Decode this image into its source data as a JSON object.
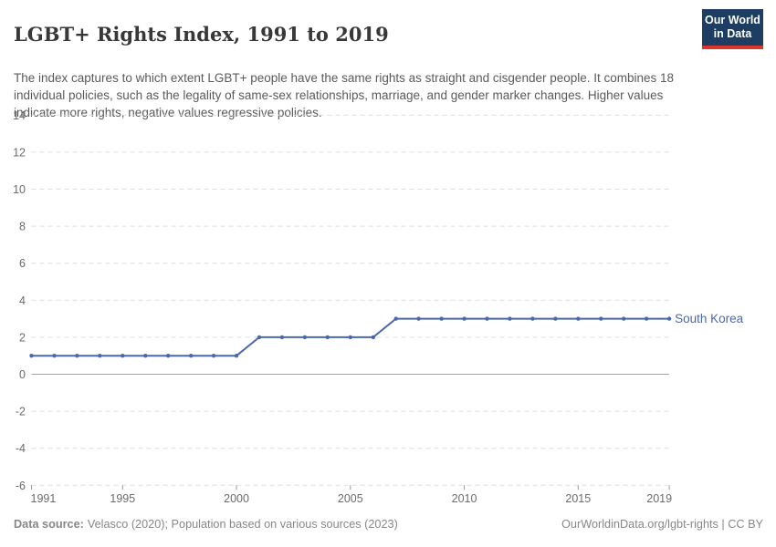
{
  "header": {
    "title": "LGBT+ Rights Index, 1991 to 2019",
    "subtitle": "The index captures to which extent LGBT+ people have the same rights as straight and cisgender people. It combines 18 individual policies, such as the legality of same-sex relationships, marriage, and gender marker changes. Higher values indicate more rights, negative values regressive policies.",
    "logo": {
      "line1": "Our World",
      "line2": "in Data",
      "bg_color": "#1d3d63",
      "accent_color": "#dc352b"
    }
  },
  "chart_data": {
    "type": "line",
    "title": "LGBT+ Rights Index, 1991 to 2019",
    "xlabel": "",
    "ylabel": "",
    "x": [
      1991,
      1992,
      1993,
      1994,
      1995,
      1996,
      1997,
      1998,
      1999,
      2000,
      2001,
      2002,
      2003,
      2004,
      2005,
      2006,
      2007,
      2008,
      2009,
      2010,
      2011,
      2012,
      2013,
      2014,
      2015,
      2016,
      2017,
      2018,
      2019
    ],
    "series": [
      {
        "name": "South Korea",
        "values": [
          1,
          1,
          1,
          1,
          1,
          1,
          1,
          1,
          1,
          1,
          2,
          2,
          2,
          2,
          2,
          2,
          3,
          3,
          3,
          3,
          3,
          3,
          3,
          3,
          3,
          3,
          3,
          3,
          3
        ]
      }
    ],
    "ylim": [
      -6,
      14
    ],
    "yticks": [
      14,
      12,
      10,
      8,
      6,
      4,
      2,
      0,
      -2,
      -4,
      -6
    ],
    "xticks": [
      1991,
      1995,
      2000,
      2005,
      2010,
      2015,
      2019
    ],
    "grid": "horizontal-dashed",
    "legend": "line-end-label",
    "colors": {
      "line": "#4a68ab",
      "grid": "#dedede",
      "zero_line": "#a5a5a5",
      "tick": "#999999",
      "axis_text": "#6b6b6b"
    }
  },
  "footer": {
    "data_source_label": "Data source:",
    "data_source_text": "Velasco (2020); Population based on various sources (2023)",
    "attribution": "OurWorldinData.org/lgbt-rights | CC BY"
  }
}
